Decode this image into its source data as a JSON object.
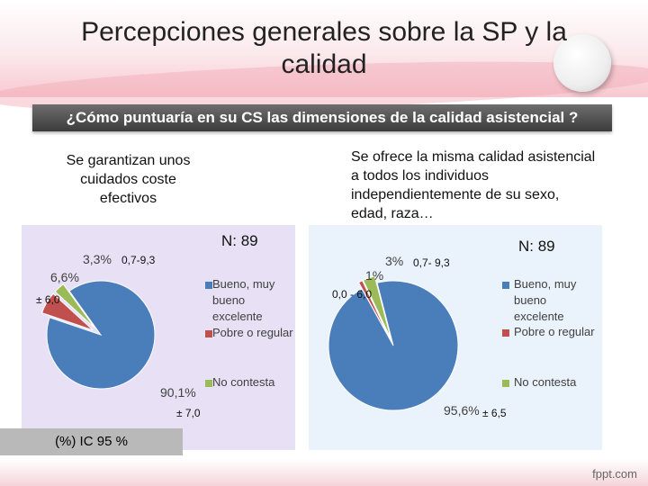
{
  "slide": {
    "title_line1": "Percepciones generales sobre la SP y la",
    "title_line2": "calidad",
    "question": "¿Cómo puntuaría en su CS las dimensiones de la calidad asistencial ?",
    "footer": "fppt.com"
  },
  "left": {
    "label_lines": [
      "Se garantizan unos",
      "cuidados coste",
      "efectivos"
    ],
    "n": "N: 89",
    "ci_small": "0,7-9,3",
    "ci_mid": "± 6,0",
    "ci_large": "± 7,0",
    "ic_box": "(%) IC 95 %"
  },
  "right": {
    "label_lines": [
      "Se ofrece la misma calidad asistencial",
      "a todos los individuos",
      "independientemente de su sexo,",
      "edad, raza…"
    ],
    "n": "N: 89",
    "ci_small": "0,7- 9,3",
    "ci_mid": "0,0 - 6,0",
    "ci_large": "± 6,5"
  },
  "legend": {
    "bueno": [
      "Bueno, muy",
      "bueno",
      "excelente"
    ],
    "pobre": "Pobre o regular",
    "no_contesta": "No contesta"
  },
  "chart_data": [
    {
      "type": "pie",
      "categories": [
        "Bueno, muy bueno excelente",
        "Pobre o regular",
        "No contesta"
      ],
      "values": [
        90.1,
        6.6,
        3.3
      ],
      "labels": [
        "90,1%",
        "6,6%",
        "3,3%"
      ],
      "colors": [
        "#4a7ebb",
        "#c0504d",
        "#9bbb59"
      ],
      "legend_position": "right"
    },
    {
      "type": "pie",
      "categories": [
        "Bueno, muy bueno excelente",
        "Pobre o regular",
        "No contesta"
      ],
      "values": [
        95.6,
        1,
        3
      ],
      "labels": [
        "95,6%",
        "1%",
        "3%"
      ],
      "colors": [
        "#4a7ebb",
        "#c0504d",
        "#9bbb59"
      ],
      "legend_position": "right"
    }
  ]
}
